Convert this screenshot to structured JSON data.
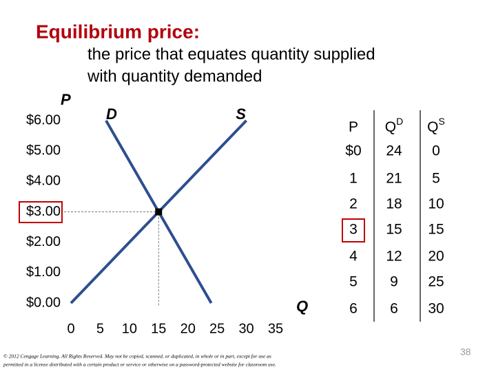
{
  "title": "Equilibrium price:",
  "subtitle": [
    "the price that equates quantity supplied",
    "with quantity demanded"
  ],
  "chart_data": {
    "type": "line",
    "ylabel": "P",
    "xlabel": "Q",
    "xlim": [
      0,
      35
    ],
    "ylim": [
      0,
      6
    ],
    "xticks": [
      0,
      5,
      10,
      15,
      20,
      25,
      30,
      35
    ],
    "yticks": [
      {
        "value": 0,
        "label": "$0.00"
      },
      {
        "value": 1,
        "label": "$1.00"
      },
      {
        "value": 2,
        "label": "$2.00"
      },
      {
        "value": 3,
        "label": "$3.00"
      },
      {
        "value": 4,
        "label": "$4.00"
      },
      {
        "value": 5,
        "label": "$5.00"
      },
      {
        "value": 6,
        "label": "$6.00"
      }
    ],
    "series": [
      {
        "name": "D",
        "color": "#2e4f8f",
        "x": [
          24,
          21,
          18,
          15,
          12,
          9,
          6
        ],
        "values": [
          0,
          1,
          2,
          3,
          4,
          5,
          6
        ]
      },
      {
        "name": "S",
        "color": "#2e4f8f",
        "x": [
          0,
          5,
          10,
          15,
          20,
          25,
          30
        ],
        "values": [
          0,
          1,
          2,
          3,
          4,
          5,
          6
        ]
      }
    ],
    "equilibrium": {
      "x": 15,
      "y": 3
    }
  },
  "table": {
    "header": [
      {
        "text": "P"
      },
      {
        "text": "Q",
        "sup": "D"
      },
      {
        "text": "Q",
        "sup": "S"
      }
    ],
    "rows": [
      [
        "$0",
        "24",
        "0"
      ],
      [
        "1",
        "21",
        "5"
      ],
      [
        "2",
        "18",
        "10"
      ],
      [
        "3",
        "15",
        "15"
      ],
      [
        "4",
        "12",
        "20"
      ],
      [
        "5",
        "9",
        "25"
      ],
      [
        "6",
        "6",
        "30"
      ]
    ]
  },
  "footer": [
    "© 2012 Cengage Learning. All Rights Reserved. May not be copied, scanned, or duplicated, in whole or in part, except for use as",
    "permitted in a license distributed with a certain product or service or otherwise on a password-protected website for classroom use."
  ],
  "page_number": "38"
}
